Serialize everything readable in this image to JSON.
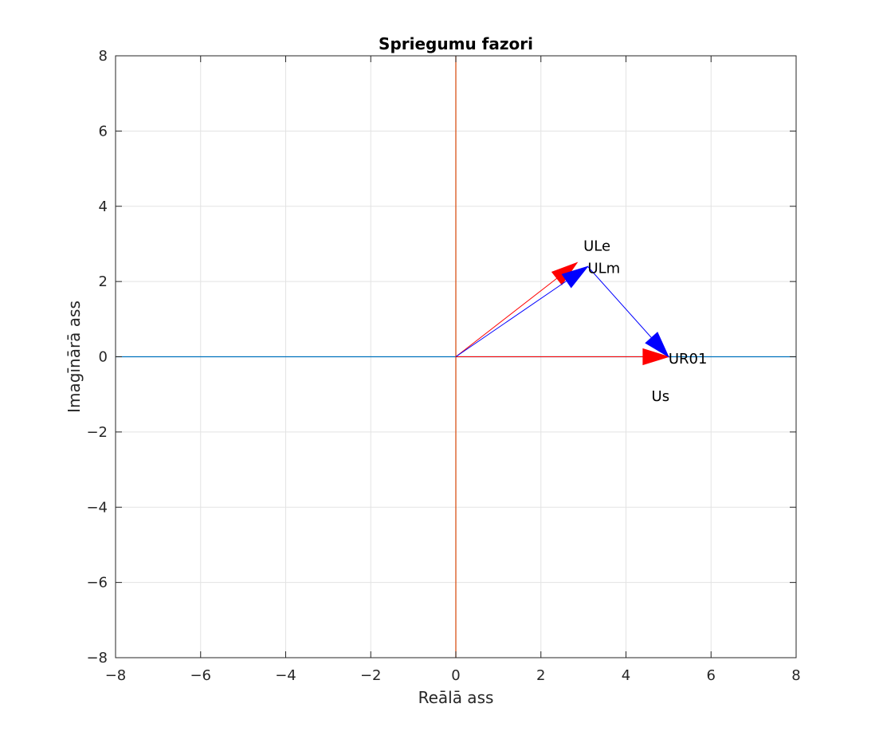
{
  "chart_data": {
    "type": "line",
    "title": "Spriegumu fazori",
    "xlabel": "Reālā ass",
    "ylabel": "Imagīnārā ass",
    "xlim": [
      -8,
      8
    ],
    "ylim": [
      -8,
      8
    ],
    "xticks": [
      -8,
      -6,
      -4,
      -2,
      0,
      2,
      4,
      6,
      8
    ],
    "yticks": [
      -8,
      -6,
      -4,
      -2,
      0,
      2,
      4,
      6,
      8
    ],
    "tick_labels_x": [
      "−8",
      "−6",
      "−4",
      "−2",
      "0",
      "2",
      "4",
      "6",
      "8"
    ],
    "tick_labels_y": [
      "−8",
      "−6",
      "−4",
      "−2",
      "0",
      "2",
      "4",
      "6",
      "8"
    ],
    "grid": true,
    "reference_lines": [
      {
        "orientation": "horizontal",
        "value": 0,
        "color": "#0072BD"
      },
      {
        "orientation": "vertical",
        "value": 0,
        "color": "#D95319"
      }
    ],
    "series": [
      {
        "from": [
          0,
          0
        ],
        "to": [
          5,
          0
        ],
        "color": "#ff0000"
      },
      {
        "from": [
          0,
          0
        ],
        "to": [
          2.85,
          2.5
        ],
        "color": "#ff0000"
      },
      {
        "from": [
          0,
          0
        ],
        "to": [
          3.1,
          2.4
        ],
        "color": "#0000ff"
      },
      {
        "from": [
          3.1,
          2.4
        ],
        "to": [
          5,
          0
        ],
        "color": "#0000ff"
      }
    ],
    "annotations": [
      {
        "text": "ULe",
        "x": 3.0,
        "y": 2.95
      },
      {
        "text": "ULm",
        "x": 3.1,
        "y": 2.35
      },
      {
        "text": "UR01",
        "x": 5.0,
        "y": -0.05
      },
      {
        "text": "Us",
        "x": 4.6,
        "y": -1.05
      }
    ]
  }
}
